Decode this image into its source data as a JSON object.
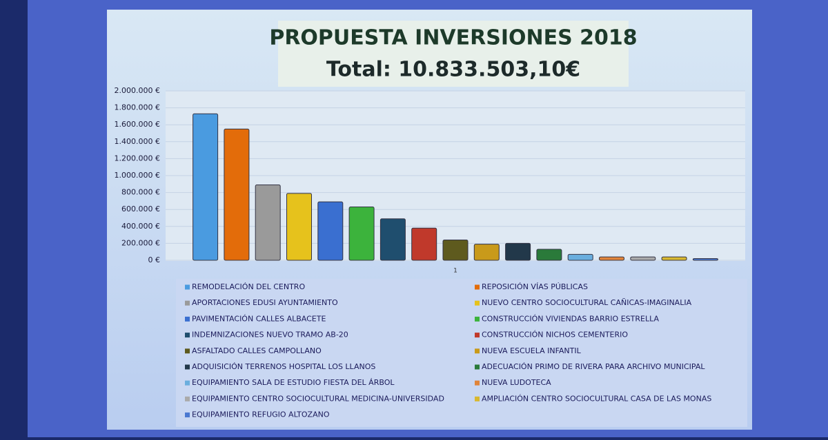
{
  "chart_data": {
    "type": "bar",
    "title": "PROPUESTA INVERSIONES 2018",
    "subtitle": "Total: 10.833.503,10€",
    "categories": [
      "1"
    ],
    "ylim": [
      0,
      2000000
    ],
    "yticks": [
      {
        "value": 0,
        "label": "0 €"
      },
      {
        "value": 200000,
        "label": "200.000 €"
      },
      {
        "value": 400000,
        "label": "400.000 €"
      },
      {
        "value": 600000,
        "label": "600.000 €"
      },
      {
        "value": 800000,
        "label": "800.000 €"
      },
      {
        "value": 1000000,
        "label": "1.000.000 €"
      },
      {
        "value": 1200000,
        "label": "1.200.000 €"
      },
      {
        "value": 1400000,
        "label": "1.400.000 €"
      },
      {
        "value": 1600000,
        "label": "1.600.000 €"
      },
      {
        "value": 1800000,
        "label": "1.800.000 €"
      },
      {
        "value": 2000000,
        "label": "2.000.000 €"
      }
    ],
    "series": [
      {
        "name": "REMODELACIÓN DEL CENTRO",
        "color": "#4a9be0",
        "values": [
          1730000
        ]
      },
      {
        "name": "REPOSICIÓN VÍAS PÚBLICAS",
        "color": "#e36c0a",
        "values": [
          1550000
        ]
      },
      {
        "name": "APORTACIONES EDUSI AYUNTAMIENTO",
        "color": "#9a9a9a",
        "values": [
          890000
        ]
      },
      {
        "name": "NUEVO CENTRO SOCIOCULTURAL CAÑICAS-IMAGINALIA",
        "color": "#e6c21c",
        "values": [
          790000
        ]
      },
      {
        "name": "PAVIMENTACIÓN CALLES ALBACETE",
        "color": "#3a6fd0",
        "values": [
          690000
        ]
      },
      {
        "name": "CONSTRUCCIÓN VIVIENDAS BARRIO ESTRELLA",
        "color": "#3cb33c",
        "values": [
          630000
        ]
      },
      {
        "name": "INDEMNIZACIONES NUEVO TRAMO AB-20",
        "color": "#1f4e6e",
        "values": [
          490000
        ]
      },
      {
        "name": "CONSTRUCCIÓN NICHOS CEMENTERIO",
        "color": "#c0392b",
        "values": [
          380000
        ]
      },
      {
        "name": "ASFALTADO CALLES CAMPOLLANO",
        "color": "#5e5a1e",
        "values": [
          240000
        ]
      },
      {
        "name": "NUEVA ESCUELA INFANTIL",
        "color": "#c99a1a",
        "values": [
          190000
        ]
      },
      {
        "name": "ADQUISICIÓN TERRENOS HOSPITAL LOS LLANOS",
        "color": "#22384a",
        "values": [
          200000
        ]
      },
      {
        "name": "ADECUACIÓN PRIMO DE RIVERA PARA ARCHIVO MUNICIPAL",
        "color": "#2a7a3a",
        "values": [
          130000
        ]
      },
      {
        "name": "EQUIPAMIENTO SALA DE ESTUDIO FIESTA DEL ÁRBOL",
        "color": "#6aaede",
        "values": [
          70000
        ]
      },
      {
        "name": "NUEVA LUDOTECA",
        "color": "#e0843a",
        "values": [
          40000
        ]
      },
      {
        "name": "EQUIPAMIENTO CENTRO SOCIOCULTURAL MEDICINA-UNIVERSIDAD",
        "color": "#aaaaaa",
        "values": [
          40000
        ]
      },
      {
        "name": "AMPLIACIÓN CENTRO SOCIOCULTURAL CASA DE LAS MONAS",
        "color": "#d8b830",
        "values": [
          40000
        ]
      },
      {
        "name": "EQUIPAMIENTO REFUGIO ALTOZANO",
        "color": "#4a78d0",
        "values": [
          20000
        ]
      }
    ]
  }
}
